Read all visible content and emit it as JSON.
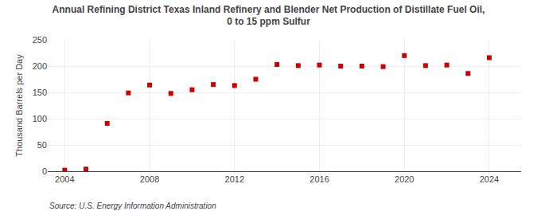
{
  "chart_data": {
    "type": "scatter",
    "title": "Annual Refining District Texas Inland Refinery and Blender Net Production of Distillate Fuel Oil,\n0 to 15 ppm Sulfur",
    "ylabel": "Thousand Barrels per Day",
    "annotations": [
      "Source: U.S. Energy Information Administration"
    ],
    "x": [
      2004,
      2005,
      2006,
      2007,
      2008,
      2009,
      2010,
      2011,
      2012,
      2013,
      2014,
      2015,
      2016,
      2017,
      2018,
      2019,
      2020,
      2021,
      2022,
      2023,
      2024
    ],
    "values": [
      2,
      4,
      91,
      149,
      164,
      148,
      155,
      165,
      163,
      175,
      203,
      201,
      202,
      200,
      200,
      199,
      220,
      201,
      202,
      186,
      216
    ],
    "color": "#cc0000",
    "marker": "square",
    "xlim": [
      2003.2,
      2025.5
    ],
    "xticks": [
      2004,
      2008,
      2012,
      2016,
      2020,
      2024
    ],
    "ylim": [
      0,
      250
    ],
    "yticks": [
      0,
      50,
      100,
      150,
      200,
      250
    ],
    "grid": true
  }
}
